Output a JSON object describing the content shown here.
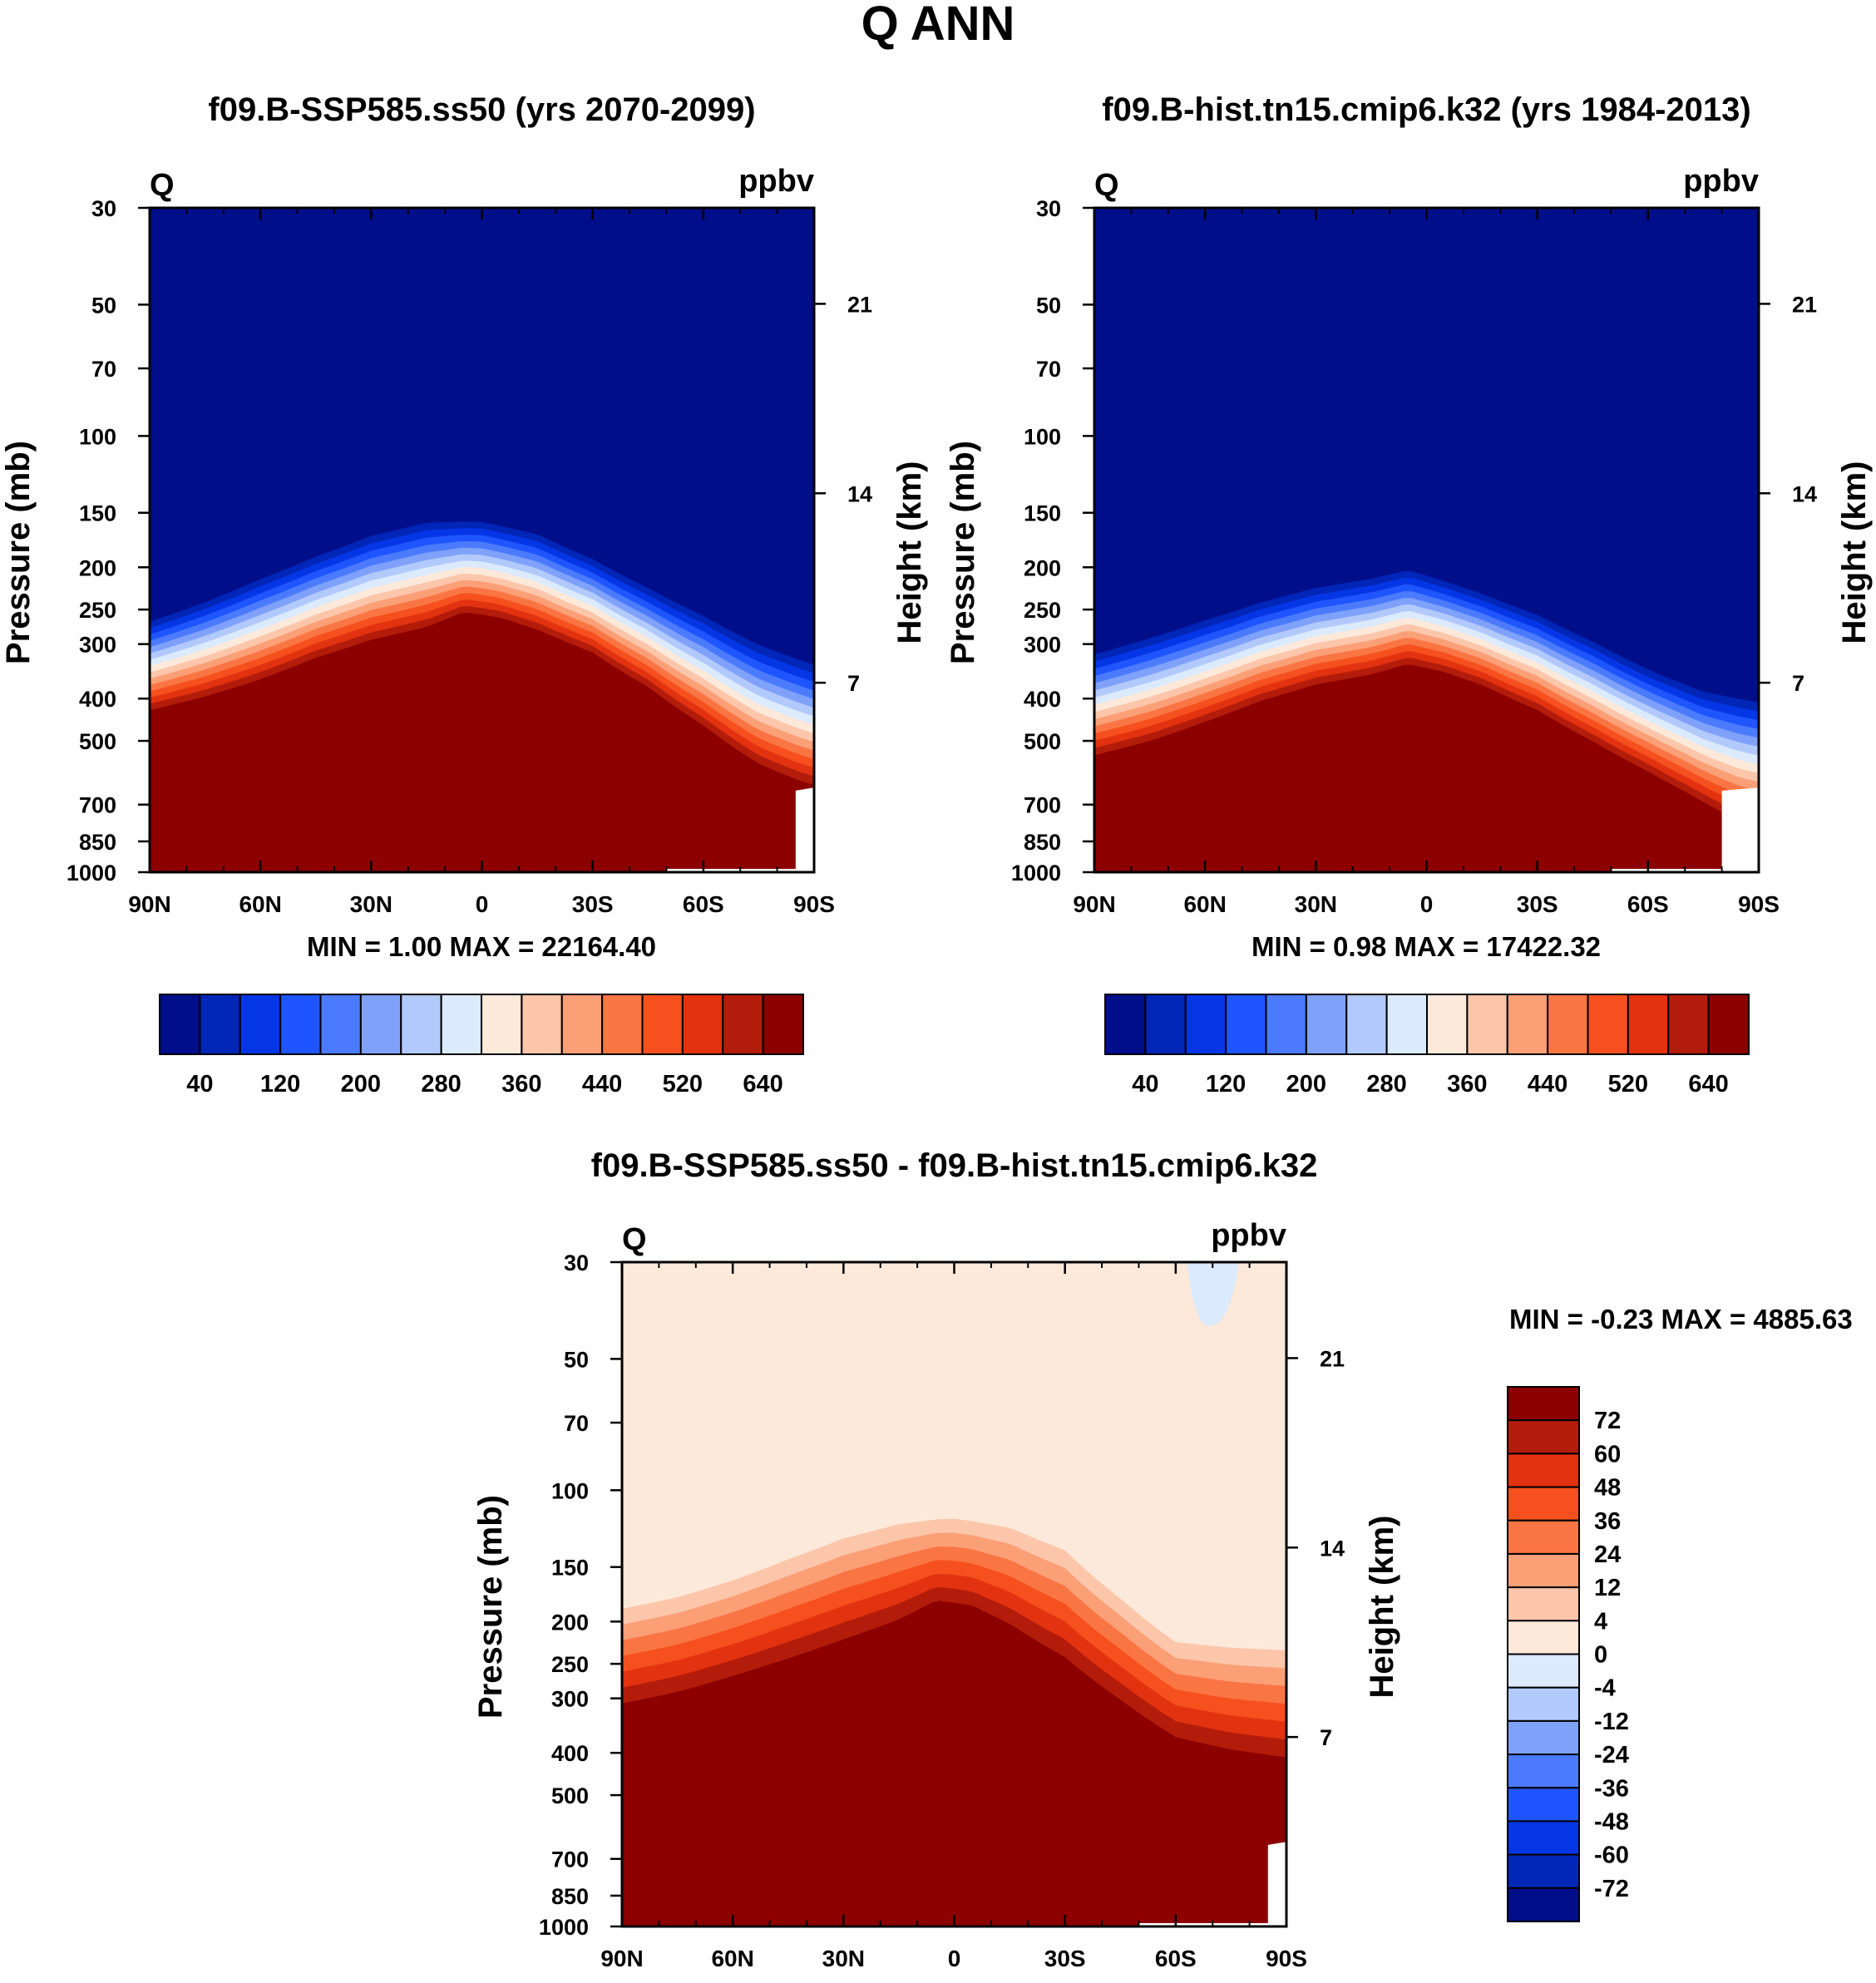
{
  "figure_title": "Q ANN",
  "chart_data": [
    {
      "type": "contour",
      "id": "p1",
      "title": "f09.B-SSP585.ss50 (yrs 2070-2099)",
      "variable": "Q",
      "units": "ppbv",
      "xlabel": "",
      "ylabel": "Pressure (mb)",
      "ylabel_right": "Height (km)",
      "x_ticks": [
        "90N",
        "60N",
        "30N",
        "0",
        "30S",
        "60S",
        "90S"
      ],
      "y_ticks": [
        "30",
        "50",
        "70",
        "100",
        "150",
        "200",
        "250",
        "300",
        "400",
        "500",
        "700",
        "850",
        "1000"
      ],
      "height_ticks": [
        "21",
        "14",
        "7"
      ],
      "ylim": [
        1000,
        30
      ],
      "stats_text": "MIN =   1.00  MAX = 22164.40",
      "min": 1.0,
      "max": 22164.4,
      "colorbar_labels": [
        "40",
        "120",
        "200",
        "280",
        "360",
        "440",
        "520",
        "640"
      ],
      "levels": [
        40,
        80,
        120,
        160,
        200,
        240,
        280,
        320,
        360,
        400,
        440,
        480,
        520,
        560,
        640
      ],
      "colors": [
        "#000e8a",
        "#0026b8",
        "#0536e6",
        "#1f55ff",
        "#4b7bfc",
        "#7fa1fa",
        "#b2c9fb",
        "#dbeafc",
        "#fde9da",
        "#fcc6ab",
        "#fb9f77",
        "#fa7544",
        "#f5501e",
        "#e23210",
        "#b31c0a",
        "#8c0000"
      ],
      "band_top_hPa": [
        [
          -90,
          258
        ],
        [
          -75,
          232
        ],
        [
          -60,
          205
        ],
        [
          -45,
          182
        ],
        [
          -30,
          163
        ],
        [
          -15,
          152
        ],
        [
          0,
          152
        ],
        [
          15,
          162
        ],
        [
          30,
          185
        ],
        [
          45,
          215
        ],
        [
          60,
          248
        ],
        [
          75,
          288
        ],
        [
          90,
          320
        ]
      ],
      "band_bottom_hPa": [
        [
          -90,
          440
        ],
        [
          -75,
          410
        ],
        [
          -60,
          375
        ],
        [
          -45,
          335
        ],
        [
          -30,
          305
        ],
        [
          -15,
          285
        ],
        [
          -5,
          262
        ],
        [
          5,
          270
        ],
        [
          15,
          288
        ],
        [
          30,
          325
        ],
        [
          45,
          390
        ],
        [
          60,
          480
        ],
        [
          75,
          590
        ],
        [
          85,
          640
        ],
        [
          90,
          660
        ]
      ],
      "red_fill": {
        "right_lon": 85,
        "gap_lon": [
          50,
          90
        ]
      }
    },
    {
      "type": "contour",
      "id": "p2",
      "title": "f09.B-hist.tn15.cmip6.k32 (yrs 1984-2013)",
      "variable": "Q",
      "units": "ppbv",
      "xlabel": "",
      "ylabel": "Pressure (mb)",
      "ylabel_right": "Height (km)",
      "x_ticks": [
        "90N",
        "60N",
        "30N",
        "0",
        "30S",
        "60S",
        "90S"
      ],
      "y_ticks": [
        "30",
        "50",
        "70",
        "100",
        "150",
        "200",
        "250",
        "300",
        "400",
        "500",
        "700",
        "850",
        "1000"
      ],
      "height_ticks": [
        "21",
        "14",
        "7"
      ],
      "ylim": [
        1000,
        30
      ],
      "stats_text": "MIN =   0.98  MAX = 17422.32",
      "min": 0.98,
      "max": 17422.32,
      "colorbar_labels": [
        "40",
        "120",
        "200",
        "280",
        "360",
        "440",
        "520",
        "640"
      ],
      "levels": [
        40,
        80,
        120,
        160,
        200,
        240,
        280,
        320,
        360,
        400,
        440,
        480,
        520,
        560,
        640
      ],
      "colors": [
        "#000e8a",
        "#0026b8",
        "#0536e6",
        "#1f55ff",
        "#4b7bfc",
        "#7fa1fa",
        "#b2c9fb",
        "#dbeafc",
        "#fde9da",
        "#fcc6ab",
        "#fb9f77",
        "#fa7544",
        "#f5501e",
        "#e23210",
        "#b31c0a",
        "#8c0000"
      ],
      "band_top_hPa": [
        [
          -90,
          305
        ],
        [
          -75,
          280
        ],
        [
          -60,
          255
        ],
        [
          -45,
          232
        ],
        [
          -30,
          215
        ],
        [
          -15,
          205
        ],
        [
          -5,
          196
        ],
        [
          5,
          208
        ],
        [
          15,
          222
        ],
        [
          30,
          248
        ],
        [
          45,
          285
        ],
        [
          60,
          330
        ],
        [
          75,
          370
        ],
        [
          90,
          390
        ]
      ],
      "band_bottom_hPa": [
        [
          -90,
          560
        ],
        [
          -75,
          520
        ],
        [
          -60,
          470
        ],
        [
          -45,
          420
        ],
        [
          -30,
          385
        ],
        [
          -15,
          365
        ],
        [
          -5,
          345
        ],
        [
          5,
          360
        ],
        [
          15,
          385
        ],
        [
          30,
          440
        ],
        [
          45,
          520
        ],
        [
          60,
          610
        ],
        [
          70,
          680
        ],
        [
          80,
          760
        ],
        [
          85,
          800
        ],
        [
          90,
          820
        ]
      ],
      "red_fill": {
        "right_lon": 80,
        "gap_lon": [
          50,
          90
        ]
      }
    },
    {
      "type": "contour",
      "id": "p3",
      "title": "f09.B-SSP585.ss50 - f09.B-hist.tn15.cmip6.k32",
      "variable": "Q",
      "units": "ppbv",
      "xlabel": "",
      "ylabel": "Pressure (mb)",
      "ylabel_right": "Height (km)",
      "x_ticks": [
        "90N",
        "60N",
        "30N",
        "0",
        "30S",
        "60S",
        "90S"
      ],
      "y_ticks": [
        "30",
        "50",
        "70",
        "100",
        "150",
        "200",
        "250",
        "300",
        "400",
        "500",
        "700",
        "850",
        "1000"
      ],
      "height_ticks": [
        "21",
        "14",
        "7"
      ],
      "ylim": [
        1000,
        30
      ],
      "stats_text": "MIN =  -0.23  MAX = 4885.63",
      "min": -0.23,
      "max": 4885.63,
      "colorbar_labels": [
        "72",
        "60",
        "48",
        "36",
        "24",
        "12",
        "4",
        "0",
        "-4",
        "-12",
        "-24",
        "-36",
        "-48",
        "-60",
        "-72"
      ],
      "levels": [
        72,
        60,
        48,
        36,
        24,
        12,
        4,
        0,
        -4,
        -12,
        -24,
        -36,
        -48,
        -60,
        -72
      ],
      "colors": [
        "#8c0000",
        "#b31c0a",
        "#e23210",
        "#f5501e",
        "#fa7544",
        "#fb9f77",
        "#fcc6ab",
        "#fde9da",
        "#dbeafc",
        "#b2c9fb",
        "#7fa1fa",
        "#4b7bfc",
        "#1f55ff",
        "#0536e6",
        "#0026b8",
        "#000e8a"
      ],
      "band_top_hPa": [
        [
          -90,
          172
        ],
        [
          -75,
          162
        ],
        [
          -60,
          148
        ],
        [
          -45,
          132
        ],
        [
          -30,
          118
        ],
        [
          -15,
          110
        ],
        [
          0,
          108
        ],
        [
          15,
          112
        ],
        [
          30,
          125
        ],
        [
          45,
          162
        ],
        [
          60,
          205
        ],
        [
          75,
          210
        ],
        [
          90,
          212
        ]
      ],
      "band_bottom_hPa": [
        [
          -90,
          335
        ],
        [
          -75,
          315
        ],
        [
          -60,
          290
        ],
        [
          -45,
          265
        ],
        [
          -30,
          240
        ],
        [
          -15,
          215
        ],
        [
          -5,
          192
        ],
        [
          5,
          198
        ],
        [
          15,
          220
        ],
        [
          30,
          265
        ],
        [
          45,
          330
        ],
        [
          60,
          400
        ],
        [
          75,
          430
        ],
        [
          90,
          450
        ]
      ],
      "blue_patch": {
        "lon": [
          63,
          77
        ],
        "tip_lon": 69,
        "tip_hPa": 42
      },
      "red_fill": {
        "right_lon": 85,
        "gap_lon": [
          50,
          90
        ]
      }
    }
  ]
}
